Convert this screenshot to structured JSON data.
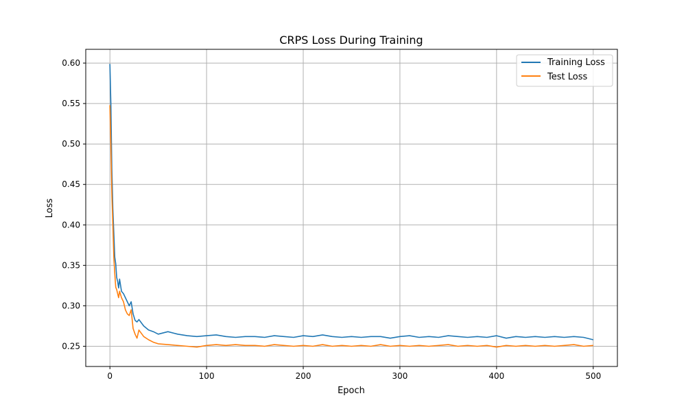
{
  "chart_data": {
    "type": "line",
    "title": "CRPS Loss During Training",
    "xlabel": "Epoch",
    "ylabel": "Loss",
    "xlim": [
      -25,
      525
    ],
    "ylim": [
      0.225,
      0.617
    ],
    "xticks": [
      0,
      100,
      200,
      300,
      400,
      500
    ],
    "yticks": [
      0.25,
      0.3,
      0.35,
      0.4,
      0.45,
      0.5,
      0.55,
      0.6
    ],
    "ytick_labels": [
      "0.25",
      "0.30",
      "0.35",
      "0.40",
      "0.45",
      "0.50",
      "0.55",
      "0.60"
    ],
    "grid": true,
    "legend_position": "top-right",
    "series": [
      {
        "name": "Training Loss",
        "color": "#1f77b4",
        "x": [
          0,
          1,
          2,
          3,
          4,
          5,
          6,
          7,
          8,
          9,
          10,
          12,
          14,
          16,
          18,
          20,
          22,
          24,
          26,
          28,
          30,
          35,
          40,
          45,
          50,
          60,
          70,
          80,
          90,
          100,
          110,
          120,
          130,
          140,
          150,
          160,
          170,
          180,
          190,
          200,
          210,
          220,
          230,
          240,
          250,
          260,
          270,
          280,
          290,
          300,
          310,
          320,
          330,
          340,
          350,
          360,
          370,
          380,
          390,
          400,
          410,
          420,
          430,
          440,
          450,
          460,
          470,
          480,
          490,
          500
        ],
        "y": [
          0.599,
          0.55,
          0.47,
          0.42,
          0.39,
          0.36,
          0.352,
          0.335,
          0.33,
          0.322,
          0.333,
          0.318,
          0.315,
          0.31,
          0.305,
          0.3,
          0.305,
          0.29,
          0.282,
          0.28,
          0.283,
          0.275,
          0.27,
          0.268,
          0.265,
          0.268,
          0.265,
          0.263,
          0.262,
          0.263,
          0.264,
          0.262,
          0.261,
          0.262,
          0.262,
          0.261,
          0.263,
          0.262,
          0.261,
          0.263,
          0.262,
          0.264,
          0.262,
          0.261,
          0.262,
          0.261,
          0.262,
          0.262,
          0.26,
          0.262,
          0.263,
          0.261,
          0.262,
          0.261,
          0.263,
          0.262,
          0.261,
          0.262,
          0.261,
          0.263,
          0.26,
          0.262,
          0.261,
          0.262,
          0.261,
          0.262,
          0.261,
          0.262,
          0.261,
          0.258
        ]
      },
      {
        "name": "Test Loss",
        "color": "#ff7f0e",
        "x": [
          0,
          1,
          2,
          3,
          4,
          5,
          6,
          7,
          8,
          9,
          10,
          12,
          14,
          16,
          18,
          20,
          22,
          24,
          26,
          28,
          30,
          35,
          40,
          45,
          50,
          60,
          70,
          80,
          90,
          100,
          110,
          120,
          130,
          140,
          150,
          160,
          170,
          180,
          190,
          200,
          210,
          220,
          230,
          240,
          250,
          260,
          270,
          280,
          290,
          300,
          310,
          320,
          330,
          340,
          350,
          360,
          370,
          380,
          390,
          400,
          410,
          420,
          430,
          440,
          450,
          460,
          470,
          480,
          490,
          500
        ],
        "y": [
          0.548,
          0.5,
          0.44,
          0.4,
          0.36,
          0.34,
          0.323,
          0.32,
          0.315,
          0.31,
          0.318,
          0.31,
          0.305,
          0.295,
          0.29,
          0.288,
          0.295,
          0.272,
          0.265,
          0.26,
          0.27,
          0.262,
          0.258,
          0.255,
          0.253,
          0.252,
          0.251,
          0.25,
          0.249,
          0.251,
          0.252,
          0.251,
          0.252,
          0.251,
          0.251,
          0.25,
          0.252,
          0.251,
          0.25,
          0.251,
          0.25,
          0.252,
          0.25,
          0.251,
          0.25,
          0.251,
          0.25,
          0.252,
          0.25,
          0.251,
          0.25,
          0.251,
          0.25,
          0.251,
          0.252,
          0.25,
          0.251,
          0.25,
          0.251,
          0.249,
          0.251,
          0.25,
          0.251,
          0.25,
          0.251,
          0.25,
          0.251,
          0.252,
          0.25,
          0.251
        ]
      }
    ]
  }
}
